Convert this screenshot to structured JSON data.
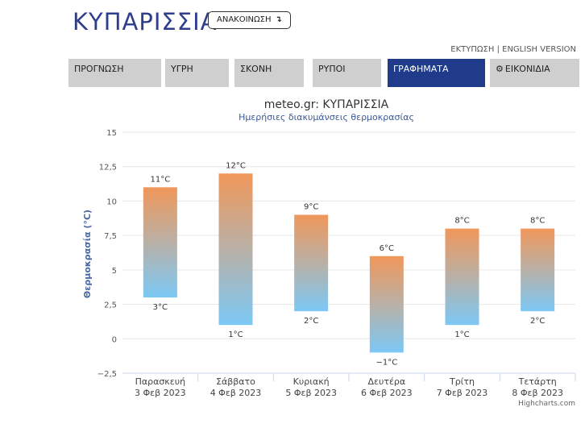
{
  "header": {
    "city_title": "ΚΥΠΑΡΙΣΣΙΑ",
    "announce_label": "ΑΝΑΚΟΙΝΩΣΗ",
    "announce_icon": "arrow-down-return-icon",
    "print_link": "ΕΚΤΥΠΩΣΗ",
    "separator": "|",
    "english_link": "ENGLISH VERSION"
  },
  "tabs": [
    {
      "label": "ΠΡΟΓΝΩΣΗ",
      "active": false
    },
    {
      "label": "ΥΓΡΗ",
      "active": false
    },
    {
      "label": "ΣΚΟΝΗ",
      "active": false
    },
    {
      "label": "ΡΥΠΟΙ",
      "active": false
    },
    {
      "label": "ΓΡΑΦΗΜΑΤΑ",
      "active": true
    },
    {
      "label": "ΕΙΚΟΝΙΔΙΑ",
      "active": false,
      "icon": "gear-icon"
    }
  ],
  "colors": {
    "accent": "#1f3b8a",
    "title": "#2f3e8c",
    "bar_top": "#f0975a",
    "bar_bottom": "#7cc8f5"
  },
  "chart_data": {
    "type": "bar",
    "subtype": "columnrange",
    "title": "meteo.gr: ΚΥΠΑΡΙΣΣΙΑ",
    "subtitle": "Ημερήσιες διακυμάνσεις θερμοκρασίας",
    "ylabel": "Θερμοκρασία (°C)",
    "xlabel": "",
    "ylim": [
      -2.5,
      15
    ],
    "yticks": [
      15,
      12.5,
      10,
      7.5,
      5,
      2.5,
      0,
      -2.5
    ],
    "ytick_labels": [
      "15",
      "12,5",
      "10",
      "7,5",
      "5",
      "2,5",
      "0",
      "−2,5"
    ],
    "grid": true,
    "categories": [
      [
        "Παρασκευή",
        "3 Φεβ 2023"
      ],
      [
        "Σάββατο",
        "4 Φεβ 2023"
      ],
      [
        "Κυριακή",
        "5 Φεβ 2023"
      ],
      [
        "Δευτέρα",
        "6 Φεβ 2023"
      ],
      [
        "Τρίτη",
        "7 Φεβ 2023"
      ],
      [
        "Τετάρτη",
        "8 Φεβ 2023"
      ]
    ],
    "low": [
      3,
      1,
      2,
      -1,
      1,
      2
    ],
    "high": [
      11,
      12,
      9,
      6,
      8,
      8
    ],
    "low_labels": [
      "3°C",
      "1°C",
      "2°C",
      "−1°C",
      "1°C",
      "2°C"
    ],
    "high_labels": [
      "11°C",
      "12°C",
      "9°C",
      "6°C",
      "8°C",
      "8°C"
    ],
    "credits": "Highcharts.com"
  }
}
